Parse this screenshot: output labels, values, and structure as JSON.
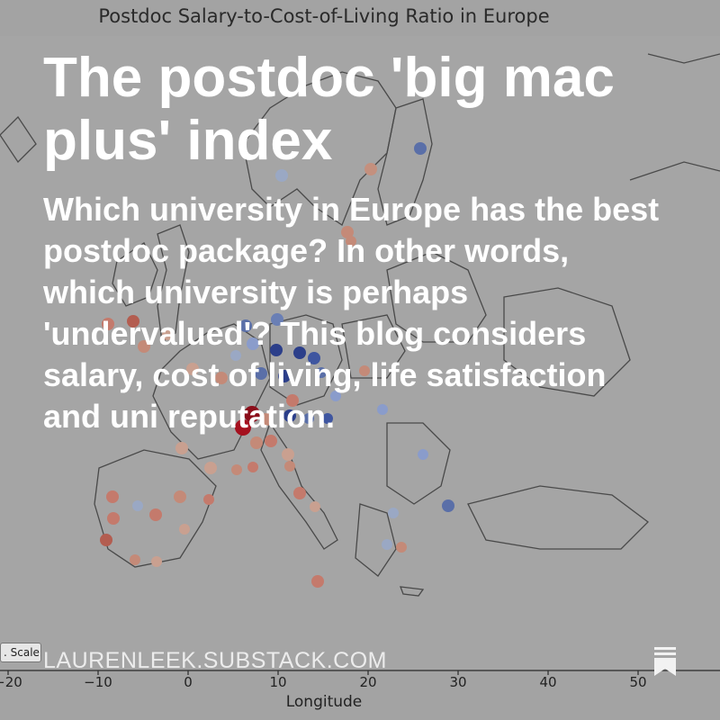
{
  "chart_data": {
    "type": "scatter",
    "title": "Postdoc Salary-to-Cost-of-Living Ratio in Europe",
    "xlabel": "Longitude",
    "x_ticks": [
      "−20",
      "−10",
      "0",
      "10",
      "20",
      "30",
      "40",
      "50"
    ],
    "colormap": {
      "low": "#b2182b",
      "high": "#2166ac"
    }
  },
  "overlay": {
    "headline": "The postdoc 'big mac plus' index",
    "subtext": "Which university in Europe has the best postdoc package? In other words, which university is perhaps 'undervalued'? This blog considers salary, cost of living, life satisfaction and uni reputation."
  },
  "toolbar": {
    "scale_label": ". Scale"
  },
  "footer": {
    "site": "LAURENLEEK.SUBSTACK.COM",
    "bookmark_icon": "bookmark-icon"
  }
}
